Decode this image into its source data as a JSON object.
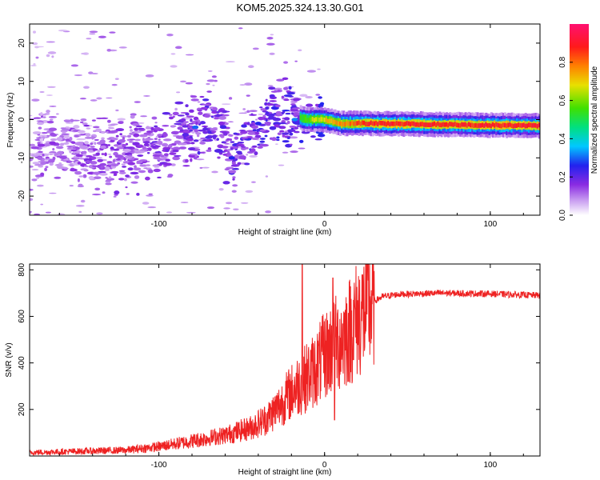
{
  "title": "KOM5.2025.324.13.30.G01",
  "chart_data": [
    {
      "type": "heatmap",
      "name": "spectrogram",
      "xlabel": "Height of straight line (km)",
      "ylabel": "Frequency (Hz)",
      "xlim": [
        -178,
        130
      ],
      "ylim": [
        -25,
        25
      ],
      "xticks": [
        -100,
        0,
        100
      ],
      "yticks": [
        -20,
        -10,
        0,
        10,
        20
      ],
      "xtick_labels": [
        "-100",
        "0",
        "100"
      ],
      "ytick_labels": [
        "-20",
        "-10",
        "0",
        "10",
        "20"
      ],
      "colorbar": {
        "label": "Normalized spectral amplitude",
        "range": [
          0,
          1
        ],
        "ticks": [
          0.0,
          0.2,
          0.4,
          0.6,
          0.8
        ],
        "tick_labels": [
          "0.0",
          "0.2",
          "0.4",
          "0.6",
          "0.8"
        ],
        "colors": [
          "#ffffff",
          "#c79af0",
          "#8a2be2",
          "#2222ee",
          "#00c8ff",
          "#00e080",
          "#40e000",
          "#e8e000",
          "#ff8000",
          "#ff1a1a",
          "#ff1070"
        ]
      },
      "ridge": [
        {
          "x": -178,
          "y": -6
        },
        {
          "x": -150,
          "y": -8
        },
        {
          "x": -125,
          "y": -9
        },
        {
          "x": -100,
          "y": -8
        },
        {
          "x": -85,
          "y": -5
        },
        {
          "x": -75,
          "y": -2
        },
        {
          "x": -65,
          "y": -1
        },
        {
          "x": -55,
          "y": -10
        },
        {
          "x": -45,
          "y": -5
        },
        {
          "x": -35,
          "y": 1
        },
        {
          "x": -20,
          "y": 1
        },
        {
          "x": -10,
          "y": 0
        },
        {
          "x": 0,
          "y": 0
        },
        {
          "x": 10,
          "y": -1
        },
        {
          "x": 30,
          "y": -1
        },
        {
          "x": 60,
          "y": -1.2
        },
        {
          "x": 90,
          "y": -1.4
        },
        {
          "x": 130,
          "y": -1.6
        }
      ]
    },
    {
      "type": "line",
      "name": "snr",
      "xlabel": "Height of straight line (km)",
      "ylabel": "SNR (v/v)",
      "xlim": [
        -178,
        130
      ],
      "ylim": [
        0,
        825
      ],
      "xticks": [
        -100,
        0,
        100
      ],
      "yticks": [
        200,
        400,
        600,
        800
      ],
      "xtick_labels": [
        "-100",
        "0",
        "100"
      ],
      "ytick_labels": [
        "200",
        "400",
        "600",
        "800"
      ],
      "color": "#ee2222",
      "envelope": [
        {
          "x": -178,
          "y": 15
        },
        {
          "x": -150,
          "y": 20
        },
        {
          "x": -120,
          "y": 25
        },
        {
          "x": -100,
          "y": 40
        },
        {
          "x": -80,
          "y": 65
        },
        {
          "x": -60,
          "y": 90
        },
        {
          "x": -45,
          "y": 120
        },
        {
          "x": -35,
          "y": 160
        },
        {
          "x": -28,
          "y": 210
        },
        {
          "x": -22,
          "y": 260
        },
        {
          "x": -18,
          "y": 290
        },
        {
          "x": -12,
          "y": 330
        },
        {
          "x": -6,
          "y": 370
        },
        {
          "x": 0,
          "y": 430
        },
        {
          "x": 5,
          "y": 470
        },
        {
          "x": 10,
          "y": 500
        },
        {
          "x": 15,
          "y": 540
        },
        {
          "x": 20,
          "y": 590
        },
        {
          "x": 25,
          "y": 630
        },
        {
          "x": 30,
          "y": 665
        },
        {
          "x": 35,
          "y": 685
        },
        {
          "x": 45,
          "y": 695
        },
        {
          "x": 70,
          "y": 700
        },
        {
          "x": 100,
          "y": 697
        },
        {
          "x": 130,
          "y": 690
        }
      ],
      "spikes": [
        {
          "x": -13.5,
          "y": 825
        },
        {
          "x": 5,
          "y": 765
        },
        {
          "x": 6,
          "y": 155
        }
      ]
    }
  ]
}
